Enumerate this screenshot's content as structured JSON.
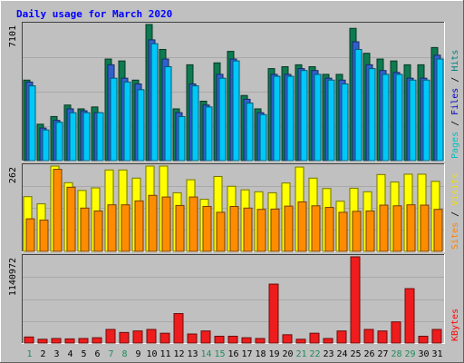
{
  "chart_data": {
    "type": "bar",
    "title": "Daily usage for March 2020",
    "days": [
      "1",
      "2",
      "3",
      "4",
      "5",
      "6",
      "7",
      "8",
      "9",
      "10",
      "11",
      "12",
      "13",
      "14",
      "15",
      "16",
      "17",
      "18",
      "19",
      "20",
      "21",
      "22",
      "23",
      "24",
      "25",
      "26",
      "27",
      "28",
      "29",
      "30",
      "31"
    ],
    "weekend_days": [
      "1",
      "7",
      "8",
      "14",
      "15",
      "21",
      "22",
      "28",
      "29"
    ],
    "panels": [
      {
        "id": "hits-files-pages",
        "max_label": "7101",
        "ylim": [
          0,
          7101
        ],
        "side_label": [
          "Pages",
          "Files",
          "Hits"
        ],
        "side_colors": [
          "#00c0c0",
          "#0000c0",
          "#008080"
        ],
        "series": [
          {
            "name": "Hits",
            "color": "#0e7a50",
            "values": [
              4200,
              1900,
              2300,
              2900,
              2700,
              2800,
              5300,
              5200,
              4200,
              7101,
              5800,
              2700,
              5000,
              3100,
              5100,
              5700,
              3400,
              2700,
              4800,
              4900,
              5000,
              4900,
              4500,
              4500,
              6900,
              5600,
              5300,
              5200,
              5000,
              5000,
              5900
            ]
          },
          {
            "name": "Files",
            "color": "#3060d0",
            "values": [
              4100,
              1700,
              2100,
              2700,
              2600,
              2500,
              5000,
              4300,
              4000,
              6300,
              5300,
              2500,
              4000,
              2900,
              4500,
              5300,
              3200,
              2500,
              4500,
              4500,
              4800,
              4700,
              4300,
              4200,
              6200,
              5000,
              4700,
              4600,
              4300,
              4300,
              5500
            ]
          },
          {
            "name": "Pages",
            "color": "#00c8f8",
            "values": [
              3900,
              1600,
              2000,
              2500,
              2500,
              2500,
              4300,
              4100,
              3700,
              6100,
              4900,
              2300,
              3900,
              2800,
              4300,
              5200,
              3000,
              2400,
              4400,
              4400,
              4700,
              4500,
              4200,
              4000,
              5800,
              4800,
              4500,
              4500,
              4200,
              4200,
              5300
            ]
          }
        ]
      },
      {
        "id": "visits-sites",
        "max_label": "262",
        "ylim": [
          0,
          262
        ],
        "side_label": [
          "Sites",
          "Visits"
        ],
        "side_colors": [
          "#ff8000",
          "#f0e000"
        ],
        "series": [
          {
            "name": "Visits",
            "color": "#ffff00",
            "values": [
              168,
              146,
              262,
              211,
              187,
              195,
              250,
              250,
              225,
              262,
              262,
              180,
              220,
              160,
              230,
              200,
              189,
              183,
              180,
              210,
              259,
              225,
              193,
              154,
              194,
              183,
              236,
              213,
              237,
              237,
              215
            ]
          },
          {
            "name": "Sites",
            "color": "#ff8c00",
            "values": [
              100,
              96,
              252,
              197,
              133,
              124,
              143,
              143,
              155,
              172,
              167,
              141,
              167,
              138,
              120,
              138,
              133,
              129,
              130,
              139,
              152,
              140,
              135,
              120,
              123,
              124,
              142,
              140,
              143,
              142,
              129
            ]
          }
        ]
      },
      {
        "id": "kbytes",
        "max_label": "1140972",
        "ylim": [
          0,
          1140972
        ],
        "side_label": [
          "KBytes"
        ],
        "side_colors": [
          "#ff0000"
        ],
        "series": [
          {
            "name": "KBytes",
            "color": "#ee1c1c",
            "values": [
              80000,
              50000,
              60000,
              55000,
              60000,
              70000,
              180000,
              140000,
              160000,
              180000,
              130000,
              390000,
              120000,
              160000,
              90000,
              90000,
              70000,
              60000,
              780000,
              110000,
              50000,
              130000,
              60000,
              160000,
              1140972,
              180000,
              160000,
              280000,
              720000,
              90000,
              180000
            ]
          }
        ]
      }
    ]
  }
}
